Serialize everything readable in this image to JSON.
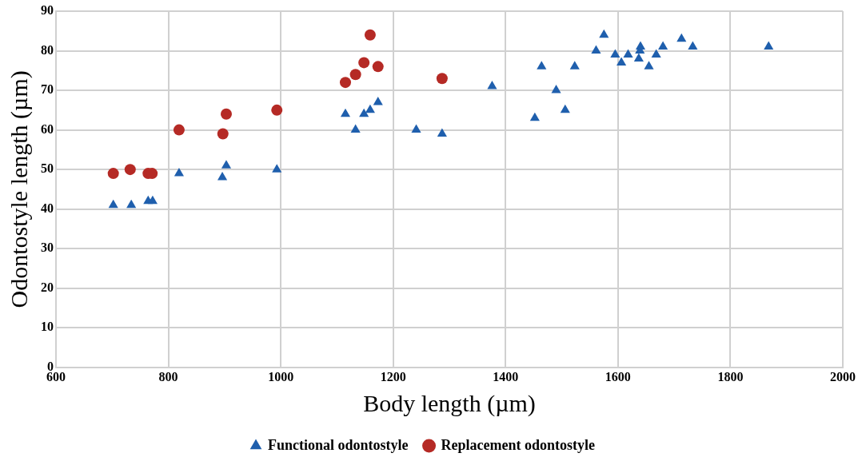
{
  "chart_data": {
    "type": "scatter",
    "xlabel": "Body length (µm)",
    "ylabel": "Odontostyle length (µm)",
    "xlim": [
      600,
      2000
    ],
    "xticks": [
      600,
      800,
      1000,
      1200,
      1400,
      1600,
      1800,
      2000
    ],
    "ylim": [
      0,
      90
    ],
    "yticks": [
      0,
      10,
      20,
      30,
      40,
      50,
      60,
      70,
      80,
      90
    ],
    "grid": true,
    "legend": "bottom",
    "series": [
      {
        "name": "Functional odontostyle",
        "color": "#1f5fad",
        "marker": "triangle",
        "x": [
          702,
          734,
          764,
          772,
          819,
          896,
          903,
          993,
          1115,
          1133,
          1148,
          1159,
          1173,
          1241,
          1287,
          1376,
          1452,
          1464,
          1490,
          1506,
          1523,
          1561,
          1575,
          1595,
          1606,
          1618,
          1637,
          1639,
          1640,
          1655,
          1668,
          1680,
          1713,
          1733,
          1868
        ],
        "values": [
          41,
          41,
          42,
          42,
          49,
          48,
          51,
          50,
          64,
          60,
          64,
          65,
          67,
          60,
          59,
          71,
          63,
          76,
          70,
          65,
          76,
          80,
          84,
          79,
          77,
          79,
          78,
          80,
          81,
          76,
          79,
          81,
          83,
          81,
          81
        ]
      },
      {
        "name": "Replacement odontostyle",
        "color": "#b52a25",
        "marker": "circle",
        "x": [
          702,
          732,
          764,
          771,
          819,
          897,
          903,
          993,
          1115,
          1133,
          1148,
          1159,
          1173,
          1287
        ],
        "values": [
          49,
          50,
          49,
          49,
          60,
          59,
          64,
          65,
          72,
          74,
          77,
          84,
          76,
          73
        ]
      }
    ]
  }
}
